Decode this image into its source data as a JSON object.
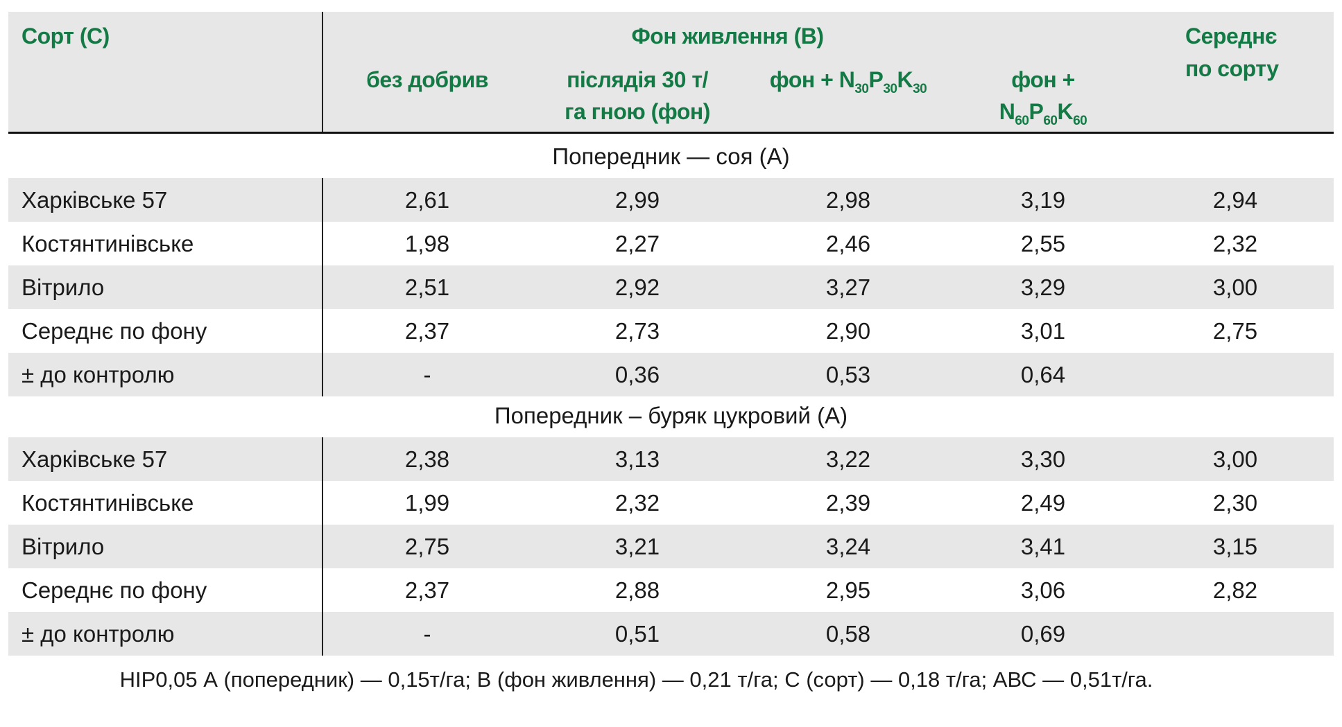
{
  "header": {
    "variety_col": "Сорт (С)",
    "nutrition_group": "Фон живлення (B)",
    "columns": [
      {
        "line1": "без добрив"
      },
      {
        "line1": "післядія 30 т/",
        "line2": "га гною (фон)"
      },
      {
        "prefix": "фон + ",
        "N": "N",
        "n1": "30",
        "P": "P",
        "n2": "30",
        "K": "K",
        "n3": "30"
      },
      {
        "prefix": "фон +",
        "N": "N",
        "n1": "60",
        "P": "P",
        "n2": "60",
        "K": "K",
        "n3": "60"
      }
    ],
    "avg_col_line1": "Середнє",
    "avg_col_line2": "по сорту"
  },
  "sections": [
    {
      "title": "Попередник — соя (A)",
      "rows": [
        {
          "label": "Харківське 57",
          "values": [
            "2,61",
            "2,99",
            "2,98",
            "3,19",
            "2,94"
          ]
        },
        {
          "label": "Костянтинівське",
          "values": [
            "1,98",
            "2,27",
            "2,46",
            "2,55",
            "2,32"
          ]
        },
        {
          "label": "Вітрило",
          "values": [
            "2,51",
            "2,92",
            "3,27",
            "3,29",
            "3,00"
          ]
        },
        {
          "label": "Середнє по фону",
          "values": [
            "2,37",
            "2,73",
            "2,90",
            "3,01",
            "2,75"
          ]
        },
        {
          "label": "± до контролю",
          "values": [
            "-",
            "0,36",
            "0,53",
            "0,64",
            ""
          ]
        }
      ]
    },
    {
      "title": "Попередник – буряк цукровий (A)",
      "rows": [
        {
          "label": "Харківське 57",
          "values": [
            "2,38",
            "3,13",
            "3,22",
            "3,30",
            "3,00"
          ]
        },
        {
          "label": "Костянтинівське",
          "values": [
            "1,99",
            "2,32",
            "2,39",
            "2,49",
            "2,30"
          ]
        },
        {
          "label": "Вітрило",
          "values": [
            "2,75",
            "3,21",
            "3,24",
            "3,41",
            "3,15"
          ]
        },
        {
          "label": "Середнє по фону",
          "values": [
            "2,37",
            "2,88",
            "2,95",
            "3,06",
            "2,82"
          ]
        },
        {
          "label": "± до контролю",
          "values": [
            "-",
            "0,51",
            "0,58",
            "0,69",
            ""
          ]
        }
      ]
    }
  ],
  "footnote": "НІР0,05 А (попередник) — 0,15т/га; В (фон живлення) — 0,21 т/га; С (сорт) — 0,18 т/га; АВС — 0,51т/га.",
  "colors": {
    "header_text": "#137a45",
    "stripe": "#e6e7e6"
  }
}
